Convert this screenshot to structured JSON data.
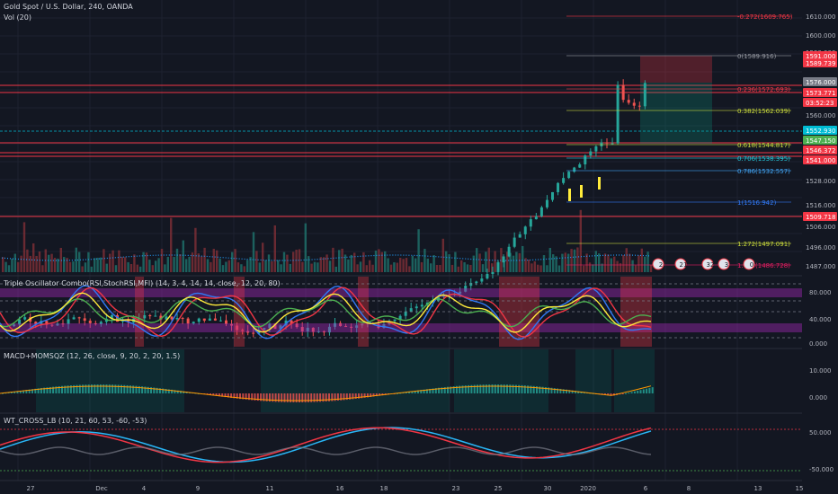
{
  "header": {
    "symbol_title": "Gold Spot / U.S. Dollar, 240, OANDA",
    "volume_label": "Vol (20)"
  },
  "colors": {
    "background": "#131722",
    "up": "#26a69a",
    "down": "#ef5350",
    "grid": "#1e2230",
    "red_line": "#f23645",
    "fib_yellow": "#c8d83c",
    "fib_blue": "#3179f5"
  },
  "price_axis": {
    "ticks": [
      "1610.000",
      "1600.000",
      "1580.000",
      "1560.000",
      "1528.000",
      "1516.000",
      "1506.000",
      "1496.000",
      "1487.000"
    ],
    "badges": [
      {
        "text": "1591.000",
        "color": "#f23645"
      },
      {
        "text": "1589.739",
        "color": "#f23645"
      },
      {
        "text": "1576.000",
        "color": "#787b86"
      },
      {
        "text": "1573.771",
        "color": "#f23645"
      },
      {
        "text": "03:52:23",
        "color": "#f23645"
      },
      {
        "text": "1552.930",
        "color": "#00bcd4"
      },
      {
        "text": "1547.150",
        "color": "#4caf50"
      },
      {
        "text": "1546.372",
        "color": "#f23645"
      },
      {
        "text": "1541.000",
        "color": "#f23645"
      },
      {
        "text": "1509.718",
        "color": "#f23645"
      }
    ]
  },
  "fib_levels": [
    {
      "label": "-0.272(1609.765)",
      "color": "#f23645"
    },
    {
      "label": "0(1589.916)",
      "color": "#9598a1"
    },
    {
      "label": "0.236(1572.693)",
      "color": "#f23645"
    },
    {
      "label": "0.382(1562.039)",
      "color": "#c8d83c"
    },
    {
      "label": "0.618(1544.817)",
      "color": "#c8d83c"
    },
    {
      "label": "0.706(1538.395)",
      "color": "#26c6da"
    },
    {
      "label": "0.786(1532.557)",
      "color": "#42a5f5"
    },
    {
      "label": "1(1516.942)",
      "color": "#3179f5"
    },
    {
      "label": "1.272(1497.091)",
      "color": "#c8d83c"
    },
    {
      "label": "1.414(1486.728)",
      "color": "#e91e63"
    }
  ],
  "event_markers": [
    "2",
    "21",
    "32",
    "3",
    "0"
  ],
  "oscillator_panel": {
    "title": "Triple Oscillator Combo(RSI,StochRSI,MFI) (14, 3, 4, 14, 14, close, 12, 20, 80)",
    "ticks": [
      "80.000",
      "40.000",
      "0.000"
    ]
  },
  "macd_panel": {
    "title": "MACD+MOMSQZ (12, 26, close, 9, 20, 2, 20, 1.5)",
    "ticks": [
      "10.000",
      "0.000"
    ]
  },
  "wt_panel": {
    "title": "WT_CROSS_LB (10, 21, 60, 53, -60, -53)",
    "ticks": [
      "50.000",
      "-50.000"
    ]
  },
  "time_axis": {
    "labels": [
      "27",
      "Dec",
      "4",
      "9",
      "11",
      "16",
      "18",
      "23",
      "25",
      "30",
      "2020",
      "6",
      "8",
      "13",
      "15"
    ]
  }
}
